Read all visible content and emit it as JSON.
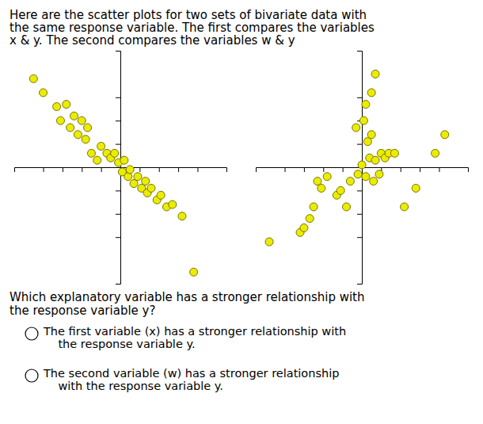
{
  "chart_data": [
    {
      "type": "scatter",
      "title": [
        "Here are the scatter plots for two sets of bivariate data with",
        "the same response variable. The first compares the variables",
        "x & y. The second compares the variables w & y"
      ],
      "annotations": [
        "Which explanatory variable has a stronger relationship with",
        "the response variable y?",
        "The first variable (x) has a stronger relationship with",
        "    the response variable y.",
        "The second variable (w) has a stronger relationship",
        "    with the response variable y."
      ],
      "x": [
        -4.5,
        -4.0,
        -3.3,
        -3.1,
        -2.8,
        -2.6,
        -2.4,
        -2.2,
        -2.0,
        -1.8,
        -1.7,
        -1.5,
        -1.2,
        -1.0,
        -0.7,
        -0.5,
        -0.3,
        -0.1,
        0.1,
        0.2,
        0.4,
        0.5,
        0.7,
        0.9,
        1.1,
        1.3,
        1.4,
        1.6,
        1.9,
        2.1,
        2.4,
        2.7,
        3.2,
        3.8
      ],
      "values": [
        3.8,
        3.2,
        2.6,
        2.0,
        2.7,
        1.7,
        2.2,
        1.4,
        2.0,
        1.2,
        1.7,
        0.6,
        0.3,
        0.9,
        0.6,
        0.4,
        0.6,
        0.2,
        -0.2,
        0.3,
        -0.4,
        -0.1,
        -0.7,
        -0.4,
        -0.9,
        -0.6,
        -1.1,
        -0.9,
        -1.4,
        -1.2,
        -1.7,
        -1.6,
        -2.1,
        -4.5
      ],
      "color": "#ecec00",
      "xlim": [
        -5.5,
        5.5
      ],
      "ylim": [
        -5.0,
        5.0
      ],
      "xticks": [
        -4,
        -3,
        -2,
        -1,
        1,
        2,
        3,
        4
      ],
      "yticks": [
        -3,
        -2,
        -1,
        1,
        2,
        3
      ],
      "tick_labels": false
    },
    {
      "type": "scatter",
      "x": [
        -4.8,
        -3.2,
        -3.0,
        -2.7,
        -2.5,
        -2.3,
        -2.1,
        -1.8,
        -0.8,
        -0.6,
        -0.2,
        0.0,
        0.2,
        0.4,
        0.6,
        0.7,
        0.9,
        1.0,
        1.2,
        1.4,
        1.7,
        0.3,
        0.5,
        -0.3,
        0.1,
        2.2,
        2.8,
        3.8,
        4.3,
        -1.3,
        -1.1,
        0.2,
        0.5,
        0.7
      ],
      "values": [
        -3.2,
        -2.8,
        -2.6,
        -2.2,
        -1.7,
        -0.6,
        -0.9,
        -0.4,
        -1.7,
        -0.6,
        -0.3,
        0.1,
        -0.4,
        0.4,
        -0.6,
        0.3,
        -0.3,
        0.6,
        0.4,
        0.6,
        0.6,
        1.1,
        1.4,
        1.7,
        2.0,
        -1.7,
        -0.9,
        0.6,
        1.4,
        -1.2,
        -1.0,
        2.7,
        3.2,
        4.0
      ],
      "color": "#ecec00",
      "xlim": [
        -5.5,
        5.5
      ],
      "ylim": [
        -5.0,
        5.0
      ],
      "xticks": [
        -4,
        -3,
        -2,
        -1,
        1,
        2,
        3,
        4
      ],
      "yticks": [
        -3,
        -2,
        -1,
        1,
        2,
        3
      ],
      "tick_labels": false
    }
  ]
}
